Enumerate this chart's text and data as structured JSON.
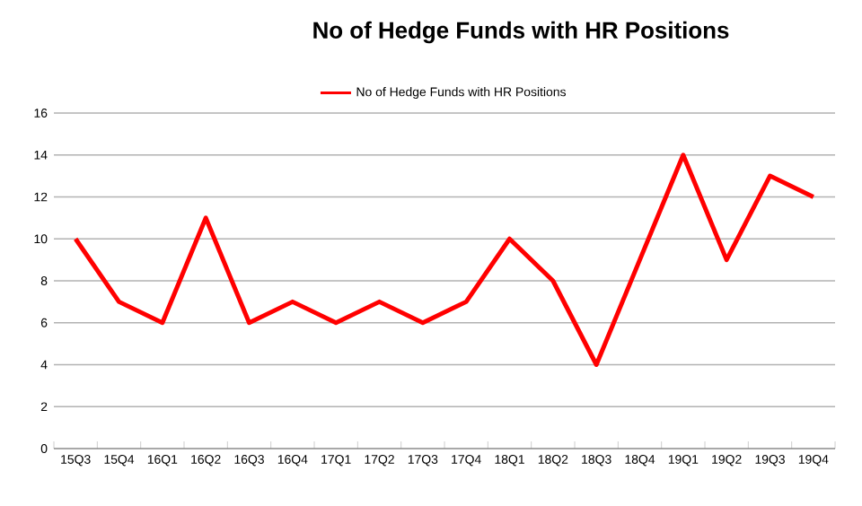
{
  "chart_data": {
    "type": "line",
    "title": "No of Hedge Funds with HR Positions",
    "categories": [
      "15Q3",
      "15Q4",
      "16Q1",
      "16Q2",
      "16Q3",
      "16Q4",
      "17Q1",
      "17Q2",
      "17Q3",
      "17Q4",
      "18Q1",
      "18Q2",
      "18Q3",
      "18Q4",
      "19Q1",
      "19Q2",
      "19Q3",
      "19Q4"
    ],
    "series": [
      {
        "name": "No of Hedge Funds with HR Positions",
        "color": "#ff0000",
        "values": [
          10,
          7,
          6,
          11,
          6,
          7,
          6,
          7,
          6,
          7,
          10,
          8,
          4,
          9,
          14,
          9,
          13,
          12
        ]
      }
    ],
    "ylim": [
      0,
      16
    ],
    "yticks": [
      0,
      2,
      4,
      6,
      8,
      10,
      12,
      14,
      16
    ],
    "grid": "y",
    "legend": "top",
    "marker": "none",
    "line_style": "solid"
  }
}
